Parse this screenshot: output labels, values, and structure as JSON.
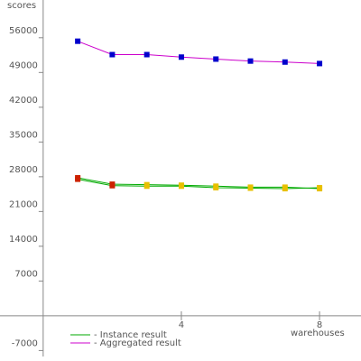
{
  "chart_data": {
    "type": "line",
    "y_label": "scores",
    "x_label": "warehouses",
    "xlim": [
      -1.25,
      9.2
    ],
    "xticks": [
      4,
      8
    ],
    "ylim": [
      -8200,
      63600
    ],
    "yticks": [
      -7000,
      {
        "value": 7000,
        "label": "7000"
      },
      14000,
      21000,
      28000,
      35000,
      42000,
      49000,
      56000
    ],
    "series": [
      {
        "name": "- Aggregated result",
        "color": "#cc00cc",
        "marker_color": "#0000cc",
        "x": [
          1,
          2,
          3,
          4,
          5,
          6,
          7,
          8
        ],
        "values": [
          55300,
          52600,
          52600,
          52100,
          51700,
          51300,
          51100,
          50800
        ]
      },
      {
        "name": "- Instance result",
        "color": "#00aa00",
        "marker_colors": [
          "#cc2200",
          "#cc2200",
          "#e8c000",
          "#e8c000",
          "#e8c000",
          "#e8c000",
          "#e8c000",
          "#e8c000"
        ],
        "x": [
          1,
          2,
          3,
          4,
          5,
          6,
          7,
          8
        ],
        "values": [
          27500,
          26200,
          26100,
          26100,
          25800,
          25700,
          25600,
          25800
        ]
      },
      {
        "color": "#00aa00",
        "marker_colors": [
          "#cc2200",
          "#cc2200",
          "#e8c000",
          "#e8c000",
          "#e8c000",
          "#e8c000",
          "#e8c000",
          "#e8c000"
        ],
        "x": [
          1,
          2,
          3,
          4,
          5,
          6,
          7,
          8
        ],
        "values": [
          27800,
          26500,
          26400,
          26300,
          26100,
          25900,
          25900,
          25600
        ]
      }
    ]
  }
}
